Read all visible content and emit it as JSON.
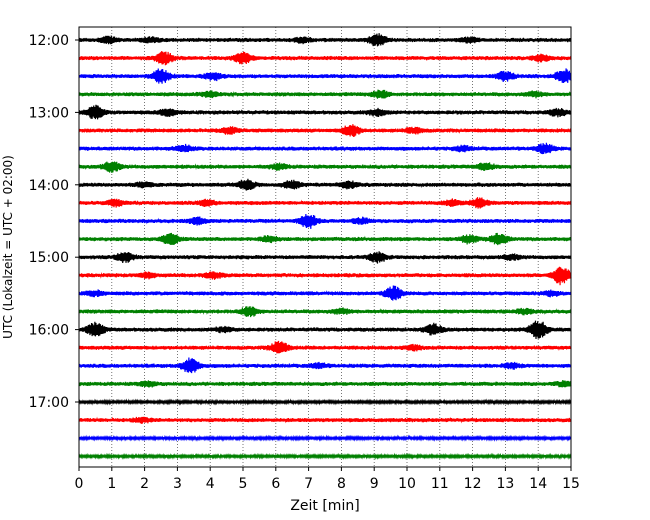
{
  "chart_data": {
    "type": "line",
    "chart_kind": "helicorder",
    "title": "",
    "xlabel": "Zeit  [min]",
    "ylabel": "UTC (Lokalzeit = UTC + 02:00)",
    "xlim": [
      0,
      15
    ],
    "x_ticks": [
      "0",
      "1",
      "2",
      "3",
      "4",
      "5",
      "6",
      "7",
      "8",
      "9",
      "10",
      "11",
      "12",
      "13",
      "14",
      "15"
    ],
    "y_ticks": [
      "12:00",
      "13:00",
      "14:00",
      "15:00",
      "16:00",
      "17:00"
    ],
    "grid": {
      "vertical": true,
      "style": "dotted"
    },
    "trace_colors": [
      "#000000",
      "#ff0000",
      "#0000ff",
      "#008000"
    ],
    "traces": [
      {
        "start": "12:00",
        "end_min": 15,
        "bursts": [
          [
            0.9,
            0.8
          ],
          [
            2.2,
            0.6
          ],
          [
            6.8,
            0.7
          ],
          [
            9.1,
            1.6
          ],
          [
            11.9,
            0.6
          ]
        ]
      },
      {
        "start": "12:15",
        "end_min": 15,
        "bursts": [
          [
            2.6,
            1.6
          ],
          [
            5.0,
            1.4
          ],
          [
            14.1,
            0.8
          ]
        ]
      },
      {
        "start": "12:30",
        "end_min": 15,
        "bursts": [
          [
            2.5,
            1.9
          ],
          [
            4.1,
            1.0
          ],
          [
            13.0,
            1.2
          ],
          [
            14.8,
            1.8
          ]
        ]
      },
      {
        "start": "12:45",
        "end_min": 15,
        "bursts": [
          [
            4.0,
            0.7
          ],
          [
            9.2,
            1.0
          ],
          [
            13.9,
            0.6
          ]
        ]
      },
      {
        "start": "13:00",
        "end_min": 15,
        "bursts": [
          [
            0.5,
            1.8
          ],
          [
            2.7,
            0.9
          ],
          [
            9.1,
            0.9
          ],
          [
            14.6,
            0.9
          ]
        ]
      },
      {
        "start": "13:15",
        "end_min": 15,
        "bursts": [
          [
            4.6,
            0.9
          ],
          [
            8.3,
            1.6
          ],
          [
            10.2,
            0.7
          ]
        ]
      },
      {
        "start": "13:30",
        "end_min": 15,
        "bursts": [
          [
            3.2,
            0.8
          ],
          [
            11.7,
            0.6
          ],
          [
            14.2,
            1.2
          ]
        ]
      },
      {
        "start": "13:45",
        "end_min": 15,
        "bursts": [
          [
            1.0,
            1.3
          ],
          [
            6.1,
            0.7
          ],
          [
            12.4,
            0.9
          ]
        ]
      },
      {
        "start": "14:00",
        "end_min": 15,
        "bursts": [
          [
            2.0,
            0.7
          ],
          [
            5.1,
            1.3
          ],
          [
            6.5,
            1.0
          ],
          [
            8.2,
            0.9
          ]
        ]
      },
      {
        "start": "14:15",
        "end_min": 15,
        "bursts": [
          [
            1.1,
            0.8
          ],
          [
            3.9,
            0.7
          ],
          [
            11.4,
            0.8
          ],
          [
            12.2,
            1.2
          ]
        ]
      },
      {
        "start": "14:30",
        "end_min": 15,
        "bursts": [
          [
            3.6,
            0.8
          ],
          [
            7.0,
            1.9
          ],
          [
            8.6,
            0.7
          ]
        ]
      },
      {
        "start": "14:45",
        "end_min": 15,
        "bursts": [
          [
            2.8,
            1.4
          ],
          [
            5.8,
            0.8
          ],
          [
            11.9,
            1.0
          ],
          [
            12.8,
            1.4
          ]
        ]
      },
      {
        "start": "15:00",
        "end_min": 15,
        "bursts": [
          [
            1.4,
            1.3
          ],
          [
            9.1,
            1.3
          ],
          [
            13.2,
            0.6
          ]
        ]
      },
      {
        "start": "15:15",
        "end_min": 15,
        "bursts": [
          [
            2.1,
            0.7
          ],
          [
            4.1,
            0.8
          ],
          [
            14.7,
            2.4
          ]
        ]
      },
      {
        "start": "15:30",
        "end_min": 15,
        "bursts": [
          [
            0.5,
            0.6
          ],
          [
            9.6,
            1.8
          ],
          [
            14.4,
            0.6
          ]
        ]
      },
      {
        "start": "15:45",
        "end_min": 15,
        "bursts": [
          [
            5.2,
            1.2
          ],
          [
            8.0,
            0.6
          ],
          [
            13.6,
            0.6
          ]
        ]
      },
      {
        "start": "16:00",
        "end_min": 15,
        "bursts": [
          [
            0.5,
            1.8
          ],
          [
            4.4,
            0.6
          ],
          [
            10.8,
            1.5
          ],
          [
            14.0,
            2.6
          ]
        ]
      },
      {
        "start": "16:15",
        "end_min": 15,
        "bursts": [
          [
            6.1,
            1.7
          ],
          [
            10.2,
            0.6
          ]
        ]
      },
      {
        "start": "16:30",
        "end_min": 15,
        "bursts": [
          [
            3.4,
            2.0
          ],
          [
            7.3,
            0.6
          ],
          [
            13.2,
            0.6
          ]
        ]
      },
      {
        "start": "16:45",
        "end_min": 15,
        "bursts": [
          [
            2.1,
            0.6
          ],
          [
            14.8,
            0.6
          ]
        ]
      },
      {
        "start": "17:00",
        "end_min": 15,
        "bursts": []
      },
      {
        "start": "17:15",
        "end_min": 15,
        "bursts": [
          [
            1.9,
            0.6
          ]
        ]
      },
      {
        "start": "17:30",
        "end_min": 15,
        "bursts": []
      },
      {
        "start": "17:45",
        "end_min": 15,
        "bursts": []
      }
    ]
  }
}
